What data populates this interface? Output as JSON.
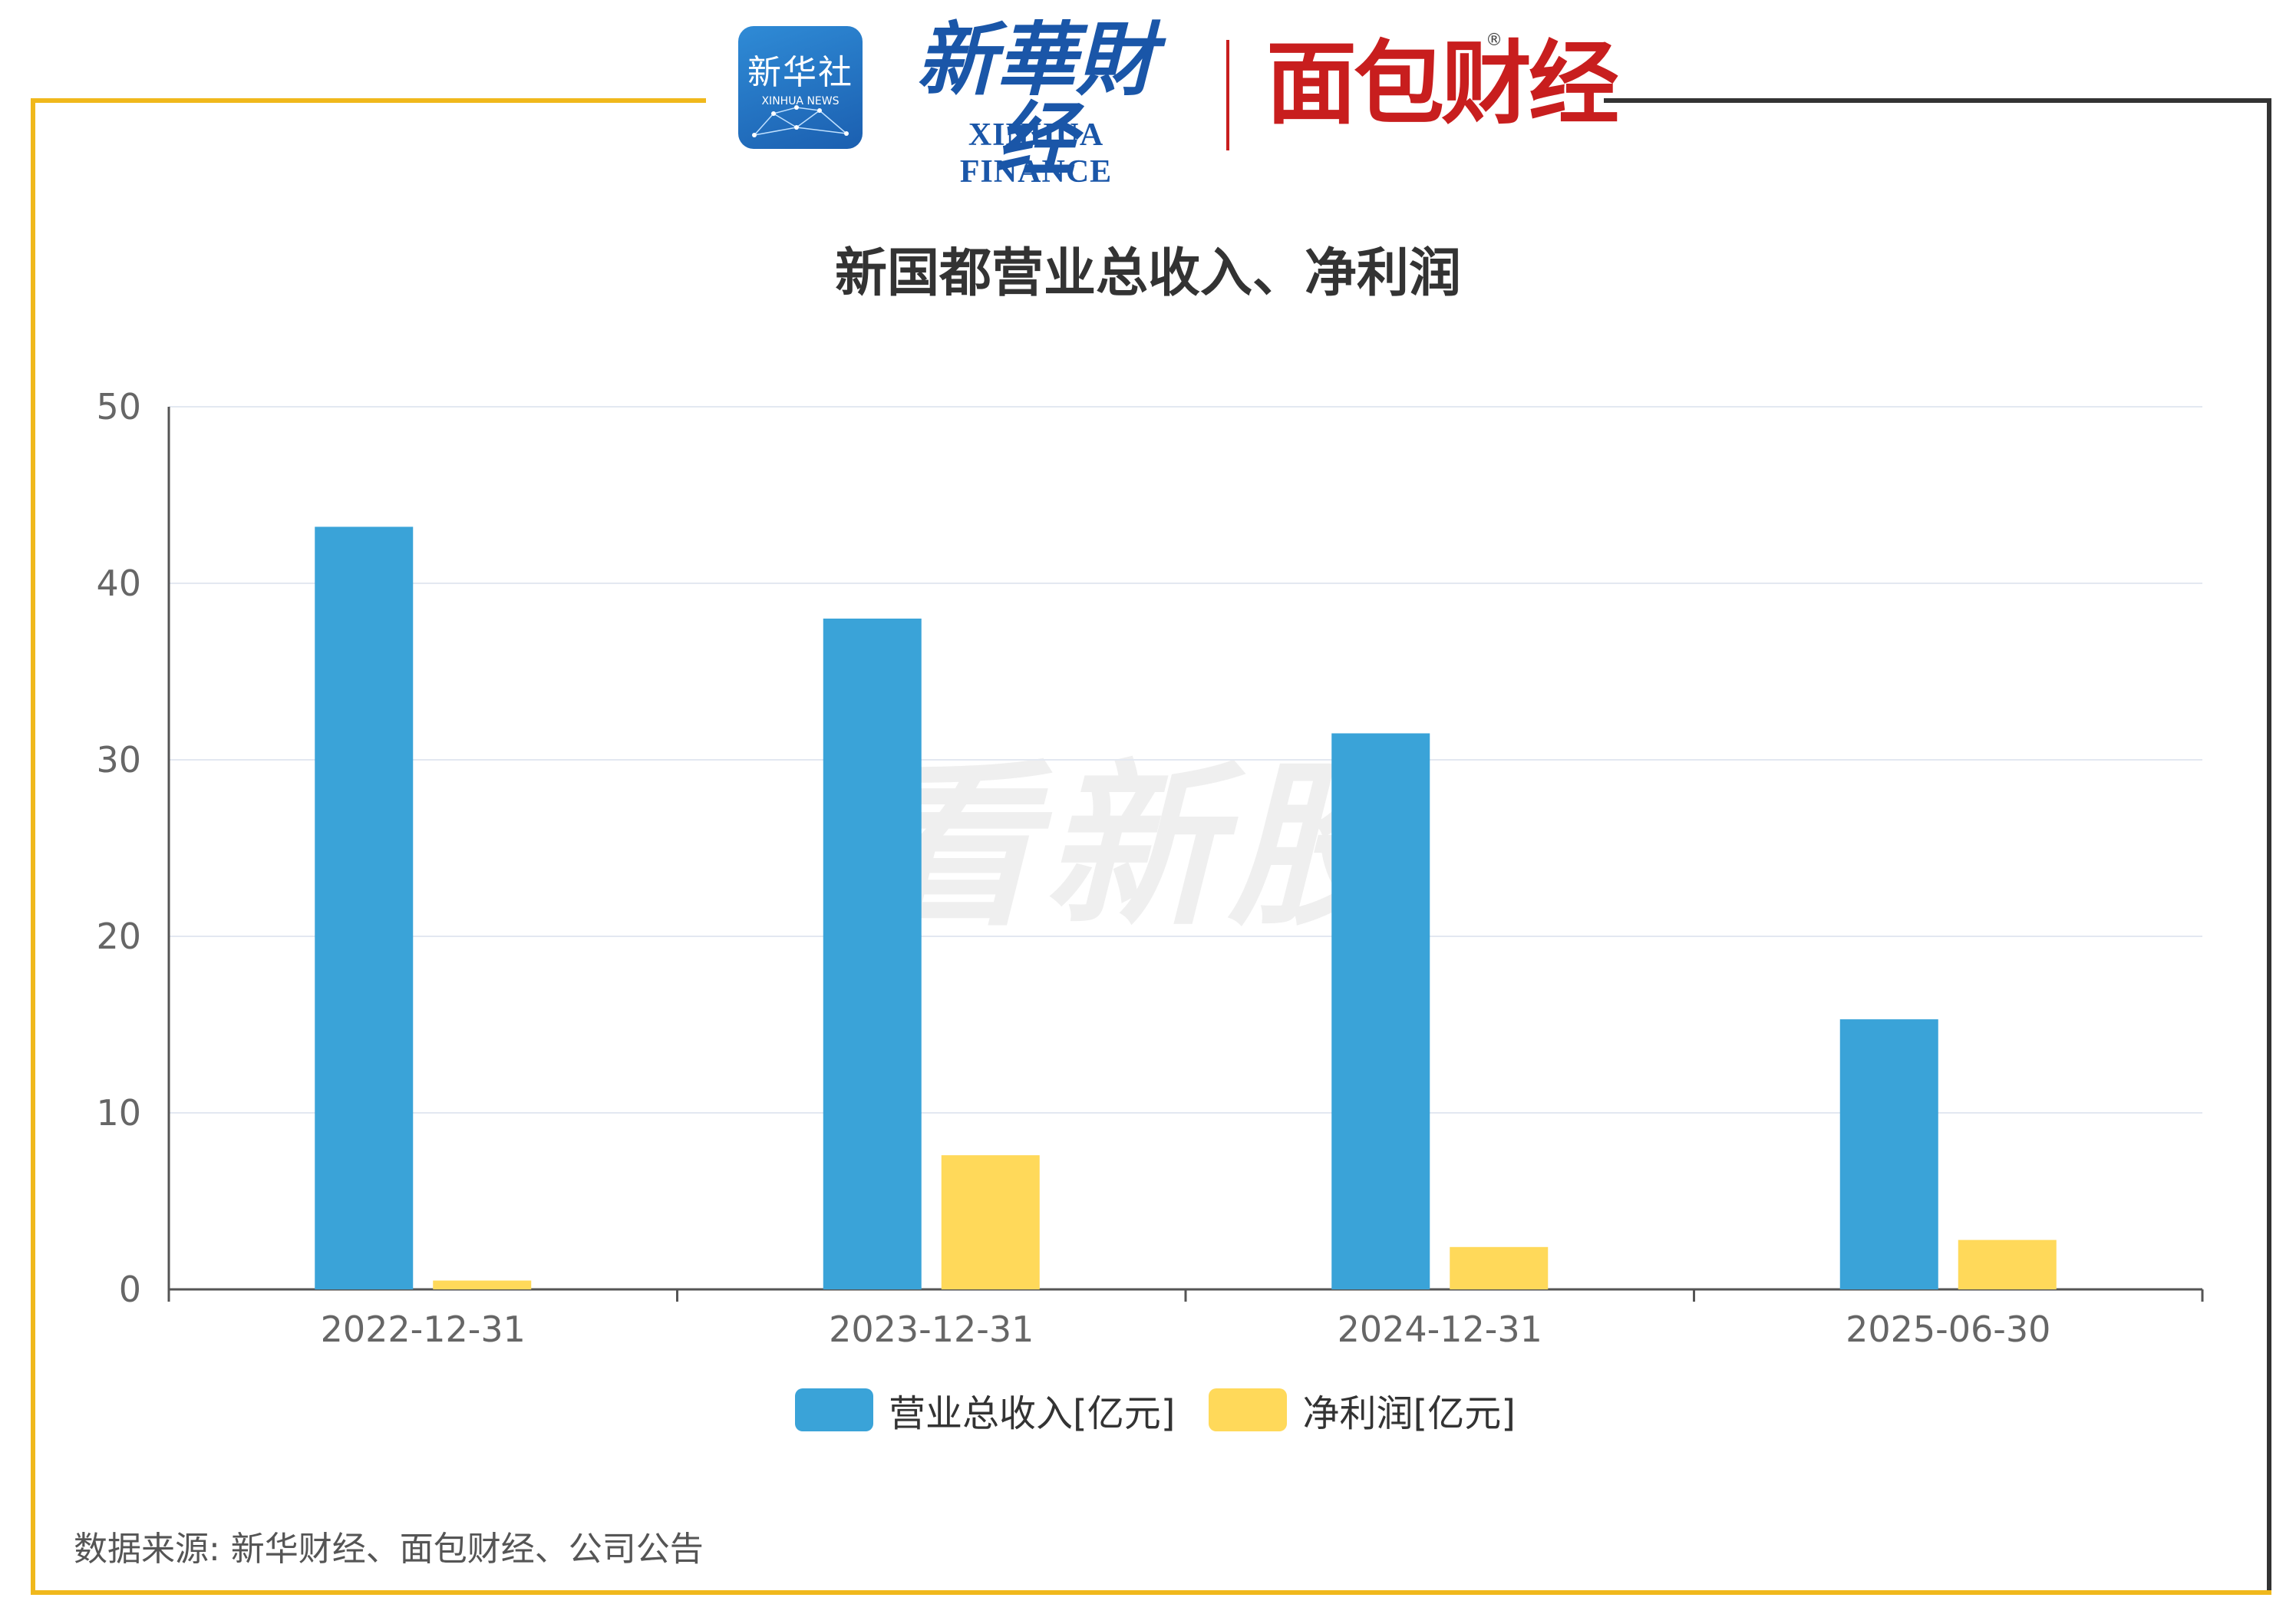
{
  "header": {
    "xinhua_badge_cn": "新华社",
    "xinhua_badge_en": "XINHUA NEWS",
    "xinhua_finance_cn": "新華財经",
    "xinhua_finance_en": "XINHUA FINANCE",
    "mianbao_logo": "面包财经"
  },
  "watermark": "看新股",
  "source": "数据来源: 新华财经、面包财经、公司公告",
  "colors": {
    "revenue": "#3aa3d8",
    "profit": "#ffd95a",
    "frame_accent": "#f0b81c",
    "brand_blue": "#1a56a8",
    "brand_red": "#c81e1e"
  },
  "chart_data": {
    "type": "bar",
    "title": "新国都营业总收入、净利润",
    "categories": [
      "2022-12-31",
      "2023-12-31",
      "2024-12-31",
      "2025-06-30"
    ],
    "series": [
      {
        "name": "营业总收入[亿元]",
        "values": [
          43.2,
          38.0,
          31.5,
          15.3
        ]
      },
      {
        "name": "净利润[亿元]",
        "values": [
          0.5,
          7.6,
          2.4,
          2.8
        ]
      }
    ],
    "yticks": [
      0,
      10,
      20,
      30,
      40,
      50
    ],
    "ylim": [
      0,
      50
    ],
    "xlabel": "",
    "ylabel": "",
    "grid": true,
    "legend_position": "bottom"
  }
}
